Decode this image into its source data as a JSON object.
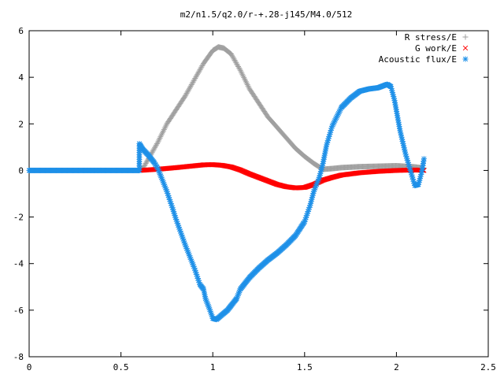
{
  "chart_data": {
    "type": "scatter",
    "title": "m2/n1.5/q2.0/r-+.28-j145/M4.0/512",
    "xlabel": "",
    "ylabel": "",
    "xlim": [
      0,
      2.5
    ],
    "ylim": [
      -8,
      6
    ],
    "x_ticks": [
      "0",
      "0.5",
      "1",
      "1.5",
      "2",
      "2.5"
    ],
    "y_ticks": [
      "6",
      "4",
      "2",
      "0",
      "-2",
      "-4",
      "-6",
      "-8"
    ],
    "grid": false,
    "legend_position": "top-right",
    "series": [
      {
        "name": "R stress/E",
        "marker": "+",
        "color": "#a0a0a0",
        "points": [
          [
            0.6,
            0.0
          ],
          [
            0.62,
            0.1
          ],
          [
            0.65,
            0.5
          ],
          [
            0.7,
            1.2
          ],
          [
            0.75,
            2.0
          ],
          [
            0.8,
            2.6
          ],
          [
            0.85,
            3.2
          ],
          [
            0.9,
            3.9
          ],
          [
            0.95,
            4.6
          ],
          [
            1.0,
            5.15
          ],
          [
            1.03,
            5.3
          ],
          [
            1.06,
            5.25
          ],
          [
            1.1,
            5.0
          ],
          [
            1.15,
            4.3
          ],
          [
            1.2,
            3.5
          ],
          [
            1.25,
            2.9
          ],
          [
            1.3,
            2.3
          ],
          [
            1.35,
            1.85
          ],
          [
            1.4,
            1.4
          ],
          [
            1.45,
            0.95
          ],
          [
            1.5,
            0.6
          ],
          [
            1.55,
            0.3
          ],
          [
            1.58,
            0.15
          ],
          [
            1.6,
            0.05
          ],
          [
            1.65,
            0.08
          ],
          [
            1.7,
            0.12
          ],
          [
            1.8,
            0.16
          ],
          [
            1.9,
            0.18
          ],
          [
            2.0,
            0.2
          ],
          [
            2.1,
            0.15
          ],
          [
            2.15,
            0.1
          ]
        ]
      },
      {
        "name": "G work/E",
        "marker": "x",
        "color": "#ff0000",
        "points": [
          [
            0.6,
            0.0
          ],
          [
            0.7,
            0.05
          ],
          [
            0.8,
            0.12
          ],
          [
            0.9,
            0.2
          ],
          [
            0.95,
            0.24
          ],
          [
            1.0,
            0.25
          ],
          [
            1.05,
            0.22
          ],
          [
            1.1,
            0.15
          ],
          [
            1.15,
            0.02
          ],
          [
            1.2,
            -0.15
          ],
          [
            1.25,
            -0.3
          ],
          [
            1.3,
            -0.45
          ],
          [
            1.35,
            -0.6
          ],
          [
            1.4,
            -0.7
          ],
          [
            1.45,
            -0.75
          ],
          [
            1.5,
            -0.73
          ],
          [
            1.55,
            -0.6
          ],
          [
            1.6,
            -0.42
          ],
          [
            1.65,
            -0.3
          ],
          [
            1.7,
            -0.2
          ],
          [
            1.8,
            -0.1
          ],
          [
            1.9,
            -0.04
          ],
          [
            2.0,
            0.0
          ],
          [
            2.1,
            0.02
          ],
          [
            2.15,
            0.0
          ]
        ]
      },
      {
        "name": "Acoustic flux/E",
        "marker": "*",
        "color": "#1e90e8",
        "points": [
          [
            0.0,
            0.0
          ],
          [
            0.1,
            0.0
          ],
          [
            0.2,
            0.0
          ],
          [
            0.3,
            0.0
          ],
          [
            0.4,
            0.0
          ],
          [
            0.5,
            0.0
          ],
          [
            0.6,
            0.0
          ],
          [
            0.6,
            1.15
          ],
          [
            0.62,
            0.9
          ],
          [
            0.65,
            0.65
          ],
          [
            0.68,
            0.35
          ],
          [
            0.7,
            0.1
          ],
          [
            0.72,
            -0.3
          ],
          [
            0.75,
            -0.9
          ],
          [
            0.78,
            -1.6
          ],
          [
            0.8,
            -2.1
          ],
          [
            0.85,
            -3.2
          ],
          [
            0.9,
            -4.2
          ],
          [
            0.93,
            -4.9
          ],
          [
            0.95,
            -5.1
          ],
          [
            0.96,
            -5.5
          ],
          [
            0.98,
            -5.9
          ],
          [
            1.0,
            -6.35
          ],
          [
            1.02,
            -6.4
          ],
          [
            1.05,
            -6.2
          ],
          [
            1.08,
            -6.0
          ],
          [
            1.1,
            -5.8
          ],
          [
            1.13,
            -5.5
          ],
          [
            1.15,
            -5.1
          ],
          [
            1.2,
            -4.6
          ],
          [
            1.25,
            -4.2
          ],
          [
            1.3,
            -3.85
          ],
          [
            1.35,
            -3.55
          ],
          [
            1.4,
            -3.2
          ],
          [
            1.45,
            -2.8
          ],
          [
            1.5,
            -2.2
          ],
          [
            1.53,
            -1.5
          ],
          [
            1.55,
            -0.9
          ],
          [
            1.58,
            -0.3
          ],
          [
            1.6,
            0.3
          ],
          [
            1.62,
            1.1
          ],
          [
            1.65,
            1.9
          ],
          [
            1.7,
            2.7
          ],
          [
            1.75,
            3.1
          ],
          [
            1.8,
            3.4
          ],
          [
            1.85,
            3.5
          ],
          [
            1.9,
            3.55
          ],
          [
            1.95,
            3.7
          ],
          [
            1.97,
            3.6
          ],
          [
            1.99,
            3.0
          ],
          [
            2.02,
            1.7
          ],
          [
            2.05,
            0.7
          ],
          [
            2.08,
            -0.1
          ],
          [
            2.1,
            -0.65
          ],
          [
            2.12,
            -0.6
          ],
          [
            2.14,
            0.0
          ],
          [
            2.15,
            0.5
          ]
        ]
      }
    ]
  }
}
